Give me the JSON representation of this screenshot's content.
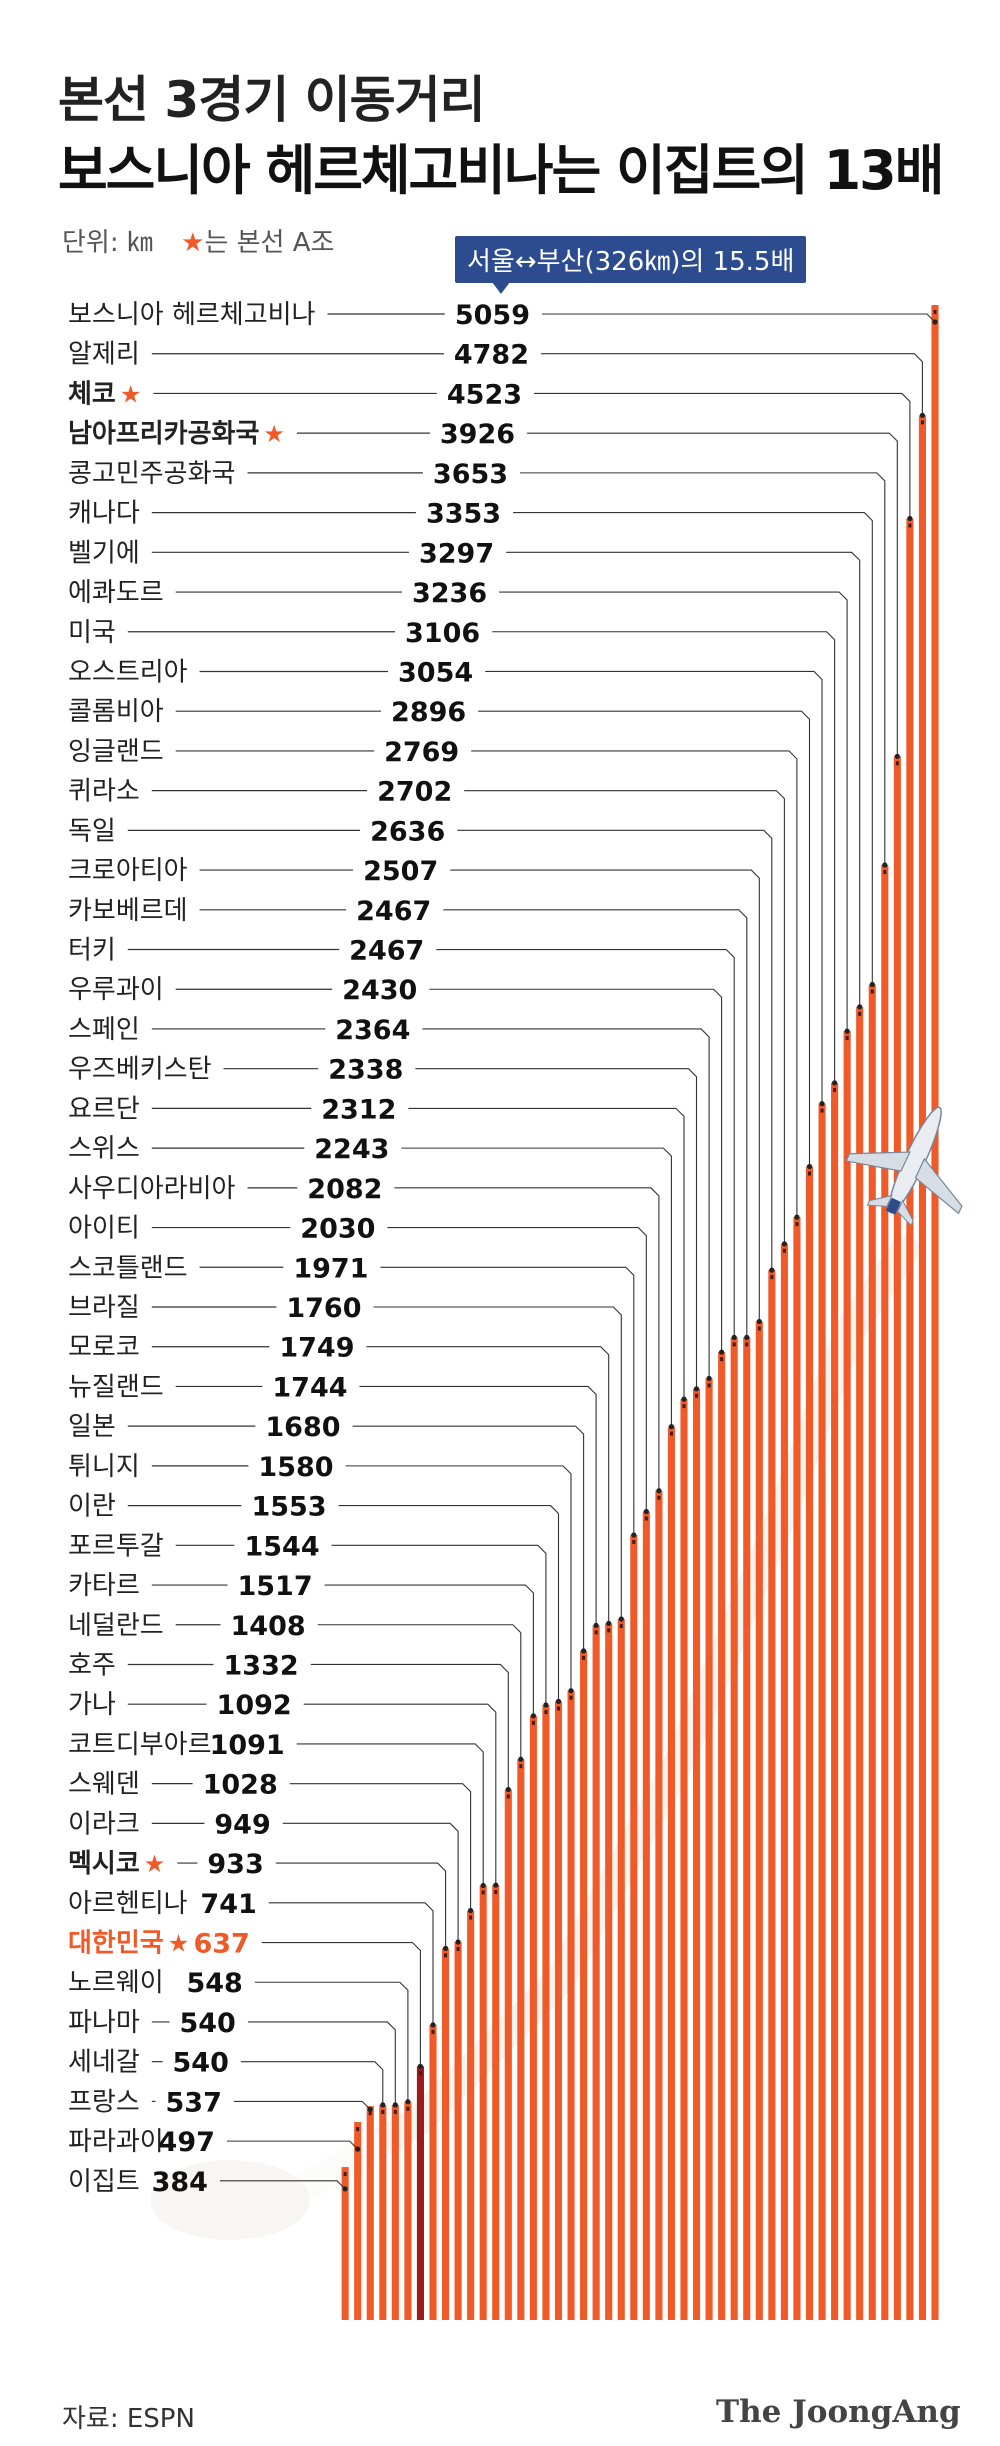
{
  "header": {
    "title_line1": "본선 3경기 이동거리",
    "title_line2": "보스니아 헤르체고비나는 이집트의 13배",
    "unit_text": "단위: ㎞",
    "legend_star": "★",
    "legend_text": "는 본선 A조"
  },
  "callout": {
    "text": "서울↔부산(326㎞)의 15.5배"
  },
  "footer": {
    "source": "자료: ESPN",
    "brand": "The JoongAng"
  },
  "colors": {
    "bar": "#f05a28",
    "bar_highlight": "#9b1c1c",
    "highlight_text": "#f05a28",
    "star": "#f05a28",
    "leader": "#333333",
    "callout_bg": "#2d4c8f"
  },
  "chart_data": {
    "type": "bar",
    "orientation": "vertical",
    "sorted": "descending",
    "categories": [
      "보스니아 헤르체고비나",
      "알제리",
      "체코",
      "남아프리카공화국",
      "콩고민주공화국",
      "캐나다",
      "벨기에",
      "에콰도르",
      "미국",
      "오스트리아",
      "콜롬비아",
      "잉글랜드",
      "퀴라소",
      "독일",
      "크로아티아",
      "카보베르데",
      "터키",
      "우루과이",
      "스페인",
      "우즈베키스탄",
      "요르단",
      "스위스",
      "사우디아라비아",
      "아이티",
      "스코틀랜드",
      "브라질",
      "모로코",
      "뉴질랜드",
      "일본",
      "튀니지",
      "이란",
      "포르투갈",
      "카타르",
      "네덜란드",
      "호주",
      "가나",
      "코트디부아르",
      "스웨덴",
      "이라크",
      "멕시코",
      "아르헨티나",
      "대한민국",
      "노르웨이",
      "파나마",
      "세네갈",
      "프랑스",
      "파라과이",
      "이집트"
    ],
    "values": [
      5059,
      4782,
      4523,
      3926,
      3653,
      3353,
      3297,
      3236,
      3106,
      3054,
      2896,
      2769,
      2702,
      2636,
      2507,
      2467,
      2467,
      2430,
      2364,
      2338,
      2312,
      2243,
      2082,
      2030,
      1971,
      1760,
      1749,
      1744,
      1680,
      1580,
      1553,
      1544,
      1517,
      1408,
      1332,
      1092,
      1091,
      1028,
      949,
      933,
      741,
      637,
      548,
      540,
      540,
      537,
      497,
      384
    ],
    "group_a": [
      "체코",
      "남아프리카공화국",
      "멕시코",
      "대한민국"
    ],
    "highlight": "대한민국",
    "unit": "㎞"
  }
}
